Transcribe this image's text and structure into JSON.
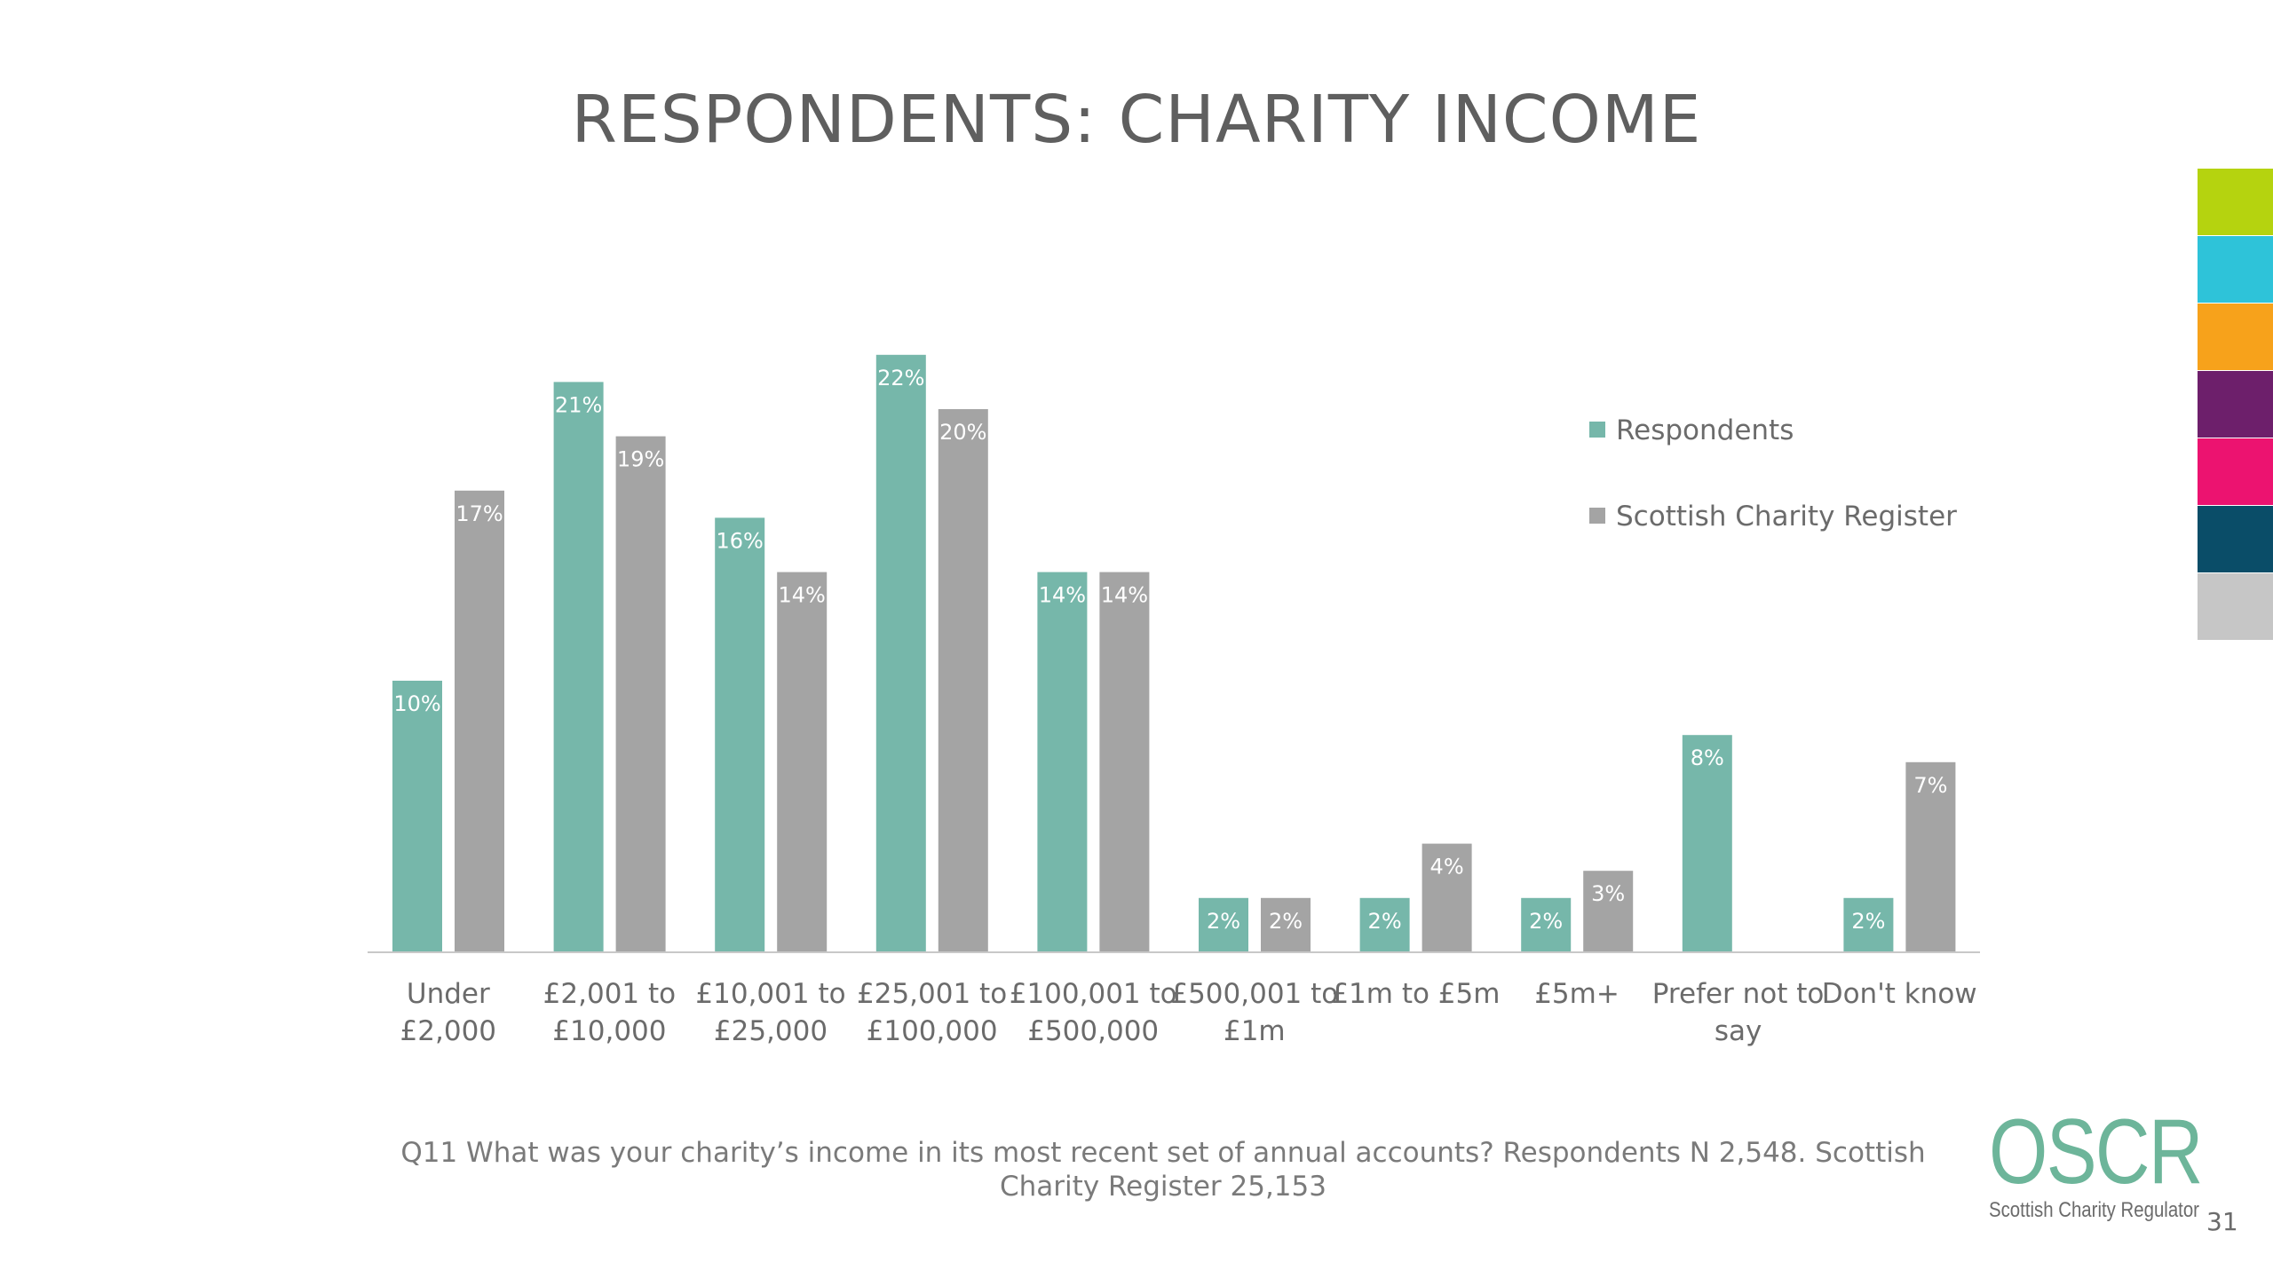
{
  "slide": {
    "title": "RESPONDENTS: CHARITY INCOME",
    "caption": "Q11 What was your charity’s income in its most recent set of annual accounts? Respondents N 2,548. Scottish Charity Register 25,153",
    "page_number": "31"
  },
  "logo": {
    "mark": "OSCR",
    "subtitle": "Scottish Charity Regulator"
  },
  "color_strip": [
    "#b5d30f",
    "#2ec3d9",
    "#f7a21b",
    "#6d1f6b",
    "#ec1370",
    "#0a4d68",
    "#c6c6c6"
  ],
  "chart_data": {
    "type": "bar",
    "title": "",
    "xlabel": "",
    "ylabel": "",
    "ylim": [
      0,
      25
    ],
    "grid": false,
    "legend_position": "top-right",
    "categories": [
      [
        "Under",
        "£2,000"
      ],
      [
        "£2,001 to",
        "£10,000"
      ],
      [
        "£10,001 to",
        "£25,000"
      ],
      [
        "£25,001 to",
        "£100,000"
      ],
      [
        "£100,001 to",
        "£500,000"
      ],
      [
        "£500,001 to",
        "£1m"
      ],
      [
        "£1m to £5m"
      ],
      [
        "£5m+"
      ],
      [
        "Prefer not to",
        "say"
      ],
      [
        "Don't know"
      ]
    ],
    "series": [
      {
        "name": "Respondents",
        "color": "#76b7aa",
        "values": [
          10,
          21,
          16,
          22,
          14,
          2,
          2,
          2,
          8,
          2
        ],
        "labels": [
          "10%",
          "21%",
          "16%",
          "22%",
          "14%",
          "2%",
          "2%",
          "2%",
          "8%",
          "2%"
        ]
      },
      {
        "name": "Scottish Charity Register",
        "color": "#a4a4a4",
        "values": [
          17,
          19,
          14,
          20,
          14,
          2,
          4,
          3,
          null,
          7
        ],
        "labels": [
          "17%",
          "19%",
          "14%",
          "20%",
          "14%",
          "2%",
          "4%",
          "3%",
          "",
          "7%"
        ]
      }
    ]
  }
}
